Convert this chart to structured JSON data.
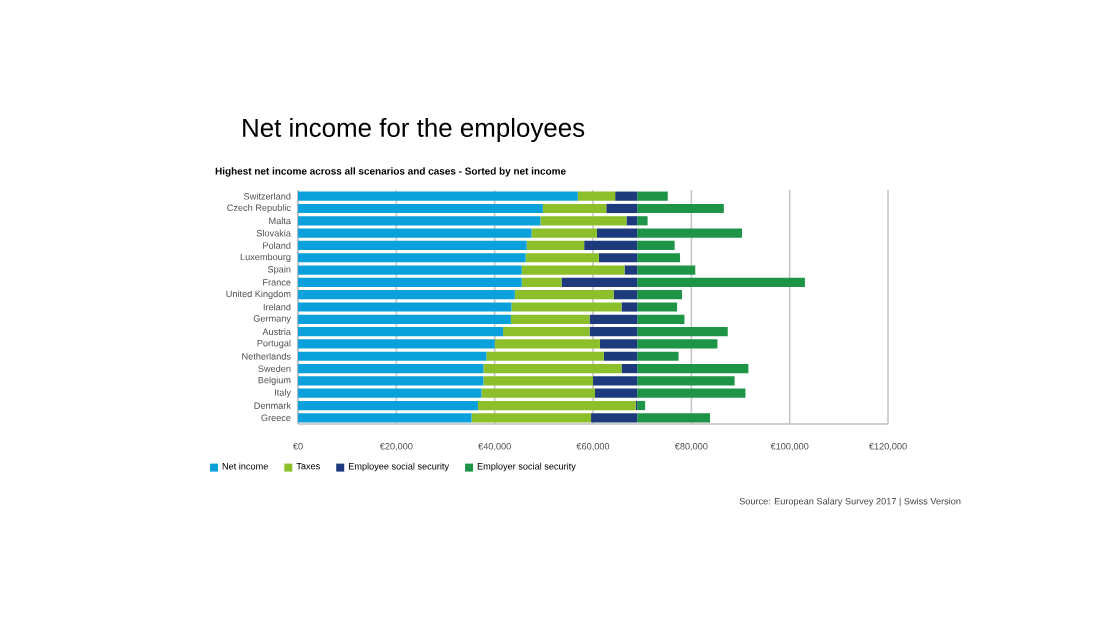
{
  "chart_data": {
    "type": "bar",
    "orientation": "horizontal",
    "stacked": true,
    "title": "Net income for the employees",
    "subtitle": "Highest net income across all scenarios and cases - Sorted by net income",
    "categories": [
      "Switzerland",
      "Czech Republic",
      "Malta",
      "Slovakia",
      "Poland",
      "Luxembourg",
      "Spain",
      "France",
      "United Kingdom",
      "Ireland",
      "Germany",
      "Austria",
      "Portugal",
      "Netherlands",
      "Sweden",
      "Belgium",
      "Italy",
      "Denmark",
      "Greece"
    ],
    "series": [
      {
        "name": "Net income",
        "color": "#0aa0dc",
        "values": [
          56900,
          49800,
          49300,
          47500,
          46500,
          46300,
          45500,
          45500,
          44100,
          43400,
          43300,
          41700,
          40000,
          38300,
          37700,
          37700,
          37300,
          36600,
          35300
        ]
      },
      {
        "name": "Taxes",
        "color": "#8cbf2a",
        "values": [
          7600,
          12900,
          17500,
          13300,
          11700,
          14900,
          20900,
          8100,
          20100,
          22400,
          16000,
          17600,
          21400,
          23900,
          28100,
          22300,
          23100,
          32100,
          24300
        ]
      },
      {
        "name": "Employee social security",
        "color": "#1d3b7c",
        "values": [
          4500,
          6300,
          2200,
          8200,
          10800,
          7800,
          2600,
          15400,
          4800,
          3200,
          9700,
          9700,
          7600,
          6800,
          3200,
          9000,
          8600,
          300,
          9400
        ]
      },
      {
        "name": "Employer social security",
        "color": "#1e9446",
        "values": [
          6200,
          17600,
          2100,
          21300,
          7600,
          8700,
          11800,
          34100,
          9100,
          8100,
          9600,
          18400,
          16300,
          8400,
          22600,
          19800,
          22000,
          1600,
          14800
        ]
      }
    ],
    "xlim": [
      0,
      120000
    ],
    "xticks": [
      {
        "value": 0,
        "label": "€0"
      },
      {
        "value": 20000,
        "label": "€20,000"
      },
      {
        "value": 40000,
        "label": "€40,000"
      },
      {
        "value": 60000,
        "label": "€60,000"
      },
      {
        "value": 80000,
        "label": "€80,000"
      },
      {
        "value": 100000,
        "label": "€100,000"
      },
      {
        "value": 120000,
        "label": "€120,000"
      }
    ],
    "grid": "x",
    "legend": "bottom left",
    "annotations": [
      "Source: European Salary Survey 2017 | Swiss Version"
    ]
  }
}
